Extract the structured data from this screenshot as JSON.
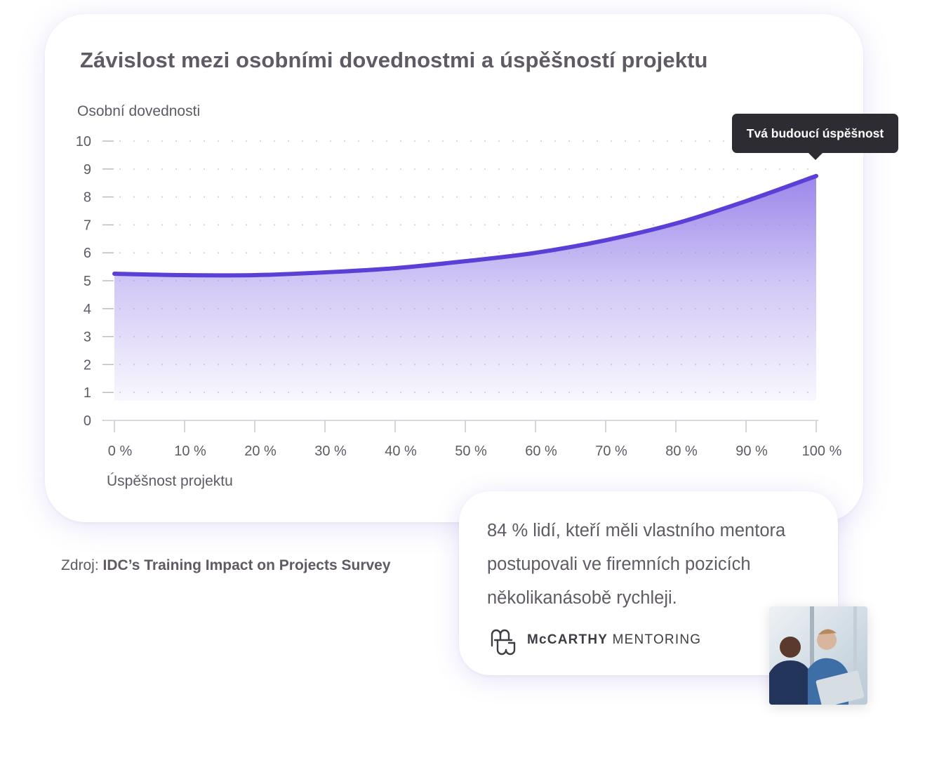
{
  "chart_data": {
    "type": "area",
    "title": "Závislost mezi osobními dovednostmi a úspěšností projektu",
    "ylabel": "Osobní dovednosti",
    "xlabel": "Úspěšnost projektu",
    "ylim": [
      0,
      10
    ],
    "xlim": [
      0,
      100
    ],
    "y_ticks": [
      "0",
      "1",
      "2",
      "3",
      "4",
      "5",
      "6",
      "7",
      "8",
      "9",
      "10"
    ],
    "x_ticks": [
      "0 %",
      "10 %",
      "20 %",
      "30 %",
      "40 %",
      "50 %",
      "60 %",
      "70 %",
      "80 %",
      "90 %",
      "100 %"
    ],
    "grid": "dotted horizontal",
    "x": [
      0,
      10,
      20,
      30,
      40,
      50,
      60,
      70,
      80,
      90,
      100
    ],
    "y": [
      5.25,
      5.2,
      5.2,
      5.3,
      5.45,
      5.7,
      6.0,
      6.45,
      7.05,
      7.85,
      8.75
    ],
    "annotation": "Tvá budoucí úspěšnost",
    "colors": {
      "line": "#5b3fd6",
      "fill": "#9b86ea"
    }
  },
  "source": {
    "prefix": "Zdroj:",
    "name": "IDC’s Training Impact on Projects Survey"
  },
  "quote": {
    "text": "84 % lidí, kteří měli vlastního mentora postupovali  ve firemních pozicích několikanásobě rychleji."
  },
  "logo": {
    "brand": "McCARTHY",
    "tagline": "MENTORING",
    "icon": "mentoring-logo-icon"
  },
  "photo": {
    "icon": "photo-two-men-laptop"
  }
}
